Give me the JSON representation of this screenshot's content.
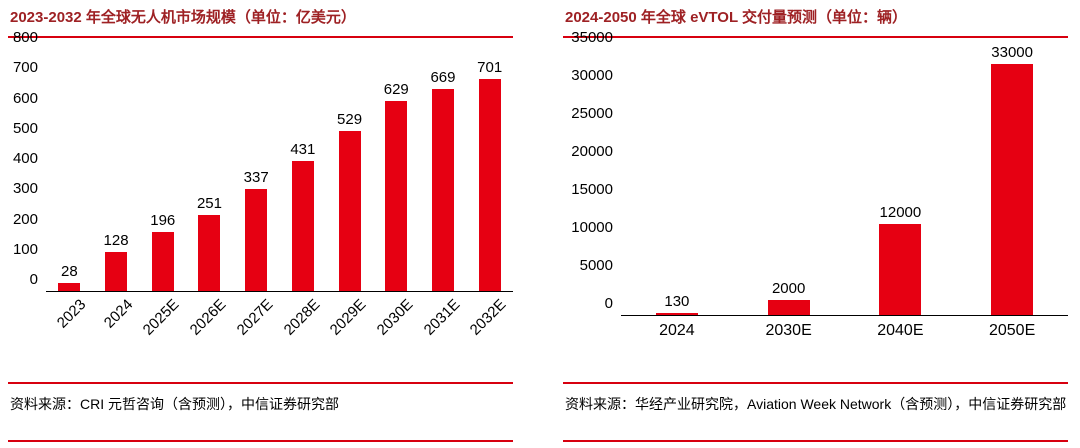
{
  "colors": {
    "bar_red": "#e60012",
    "accent_line_red": "#d7000f",
    "title_dark_red": "#9e2124",
    "axis_black": "#000000"
  },
  "chart_data": [
    {
      "type": "bar",
      "title": "2023-2032 年全球无人机市场规模（单位：亿美元）",
      "categories": [
        "2023",
        "2024",
        "2025E",
        "2026E",
        "2027E",
        "2028E",
        "2029E",
        "2030E",
        "2031E",
        "2032E"
      ],
      "values": [
        28,
        128,
        196,
        251,
        337,
        431,
        529,
        629,
        669,
        701
      ],
      "ylim": [
        0,
        800
      ],
      "ytick_step": 100,
      "x_label_rotation": -45,
      "grid": false,
      "legend": false,
      "source": "资料来源：CRI 元哲咨询（含预测），中信证券研究部"
    },
    {
      "type": "bar",
      "title": "2024-2050 年全球 eVTOL 交付量预测（单位：辆）",
      "categories": [
        "2024",
        "2030E",
        "2040E",
        "2050E"
      ],
      "values": [
        130,
        2000,
        12000,
        33000
      ],
      "ylim": [
        0,
        35000
      ],
      "ytick_step": 5000,
      "x_label_rotation": 0,
      "grid": false,
      "legend": false,
      "source": "资料来源：华经产业研究院，Aviation Week Network（含预测），中信证券研究部"
    }
  ]
}
